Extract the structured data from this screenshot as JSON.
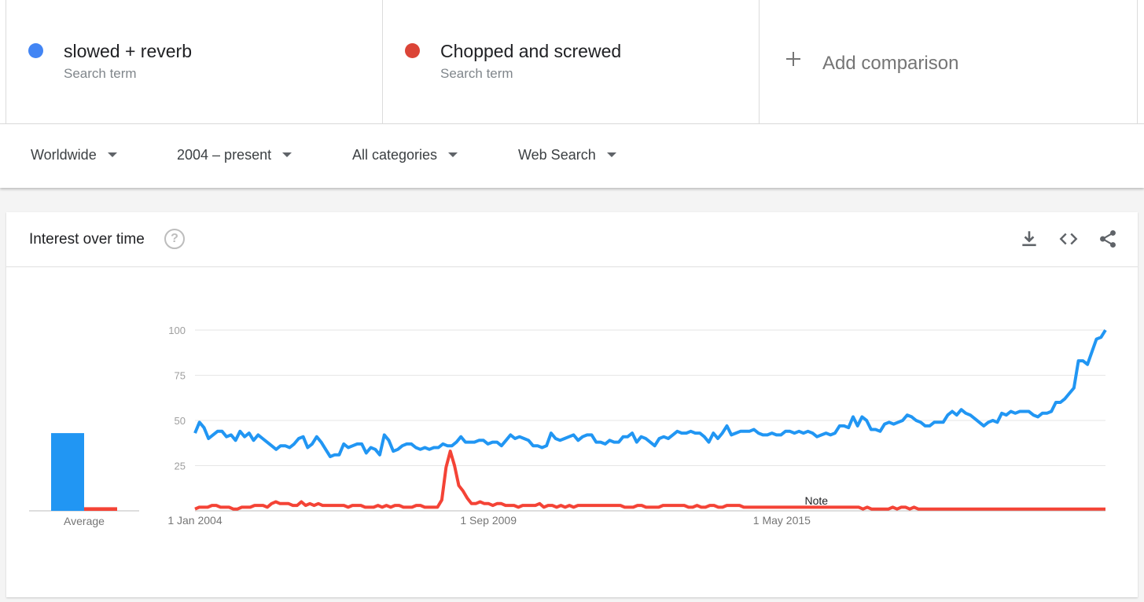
{
  "terms": [
    {
      "name": "slowed + reverb",
      "type": "Search term",
      "color": "#4285f4"
    },
    {
      "name": "Chopped and screwed",
      "type": "Search term",
      "color": "#db4437"
    }
  ],
  "add_comparison": {
    "label": "Add comparison",
    "icon": "plus-icon"
  },
  "filters": [
    {
      "label": "Worldwide"
    },
    {
      "label": "2004 – present"
    },
    {
      "label": "All categories"
    },
    {
      "label": "Web Search"
    }
  ],
  "card": {
    "title": "Interest over time",
    "icons": [
      "help-icon",
      "download-icon",
      "embed-icon",
      "share-icon"
    ]
  },
  "chart_data": {
    "type": "line",
    "title": "",
    "xlabel": "",
    "ylabel": "",
    "ylim": [
      0,
      100
    ],
    "yticks": [
      25,
      50,
      75,
      100
    ],
    "x_start": "2004-01",
    "x_end": "2021-08",
    "x_tick_labels": [
      {
        "date": "2004-01",
        "label": "1 Jan 2004"
      },
      {
        "date": "2009-09",
        "label": "1 Sep 2009"
      },
      {
        "date": "2015-05",
        "label": "1 May 2015"
      }
    ],
    "note": {
      "date": "2016-01",
      "label": "Note"
    },
    "average_label": "Average",
    "averages": [
      43,
      2
    ],
    "grid": true,
    "series": [
      {
        "color": "#2196f3",
        "values": [
          43,
          49,
          46,
          40,
          42,
          44,
          44,
          41,
          42,
          39,
          44,
          41,
          43,
          39,
          42,
          40,
          38,
          36,
          34,
          36,
          36,
          35,
          37,
          40,
          41,
          35,
          37,
          41,
          38,
          34,
          30,
          31,
          31,
          37,
          35,
          36,
          37,
          37,
          32,
          35,
          34,
          31,
          42,
          39,
          33,
          34,
          36,
          37,
          37,
          35,
          34,
          35,
          34,
          35,
          35,
          37,
          36,
          36,
          38,
          41,
          38,
          38,
          38,
          39,
          39,
          37,
          38,
          38,
          36,
          39,
          42,
          40,
          41,
          40,
          39,
          36,
          36,
          35,
          36,
          43,
          40,
          39,
          40,
          41,
          42,
          39,
          41,
          42,
          42,
          38,
          38,
          37,
          39,
          38,
          38,
          41,
          41,
          43,
          38,
          41,
          40,
          38,
          36,
          40,
          41,
          40,
          42,
          44,
          43,
          43,
          44,
          43,
          43,
          41,
          38,
          43,
          40,
          43,
          47,
          42,
          43,
          44,
          44,
          44,
          45,
          43,
          42,
          42,
          43,
          42,
          42,
          44,
          44,
          43,
          44,
          43,
          44,
          43,
          41,
          42,
          43,
          42,
          43,
          47,
          47,
          46,
          52,
          47,
          52,
          50,
          45,
          45,
          44,
          48,
          49,
          48,
          49,
          50,
          53,
          52,
          50,
          49,
          47,
          47,
          49,
          49,
          49,
          53,
          55,
          53,
          56,
          54,
          53,
          51,
          49,
          47,
          49,
          50,
          49,
          54,
          53,
          55,
          54,
          55,
          55,
          55,
          53,
          52,
          54,
          54,
          55,
          60,
          60,
          62,
          65,
          68,
          83,
          83,
          81,
          88,
          95,
          96,
          100
        ]
      },
      {
        "color": "#f44336",
        "values": [
          1,
          2,
          2,
          2,
          3,
          3,
          2,
          2,
          2,
          1,
          1,
          2,
          2,
          2,
          3,
          3,
          3,
          2,
          4,
          5,
          4,
          4,
          4,
          3,
          3,
          5,
          3,
          4,
          3,
          4,
          3,
          3,
          3,
          3,
          3,
          3,
          2,
          3,
          3,
          3,
          2,
          2,
          2,
          3,
          2,
          3,
          2,
          3,
          3,
          2,
          2,
          2,
          3,
          3,
          2,
          2,
          2,
          2,
          6,
          24,
          33,
          25,
          14,
          11,
          7,
          4,
          4,
          5,
          4,
          4,
          3,
          4,
          4,
          3,
          3,
          3,
          2,
          3,
          3,
          3,
          3,
          4,
          2,
          3,
          3,
          2,
          3,
          2,
          3,
          2,
          3,
          3,
          3,
          3,
          3,
          3,
          3,
          3,
          3,
          3,
          3,
          2,
          2,
          2,
          3,
          3,
          2,
          2,
          2,
          2,
          3,
          3,
          3,
          3,
          3,
          3,
          2,
          2,
          3,
          2,
          2,
          3,
          3,
          2,
          2,
          3,
          3,
          3,
          3,
          2,
          2,
          2,
          2,
          2,
          2,
          2,
          2,
          2,
          2,
          2,
          2,
          2,
          2,
          2,
          2,
          2,
          2,
          2,
          2,
          2,
          2,
          2,
          2,
          2,
          2,
          2,
          2,
          1,
          2,
          1,
          1,
          1,
          1,
          1,
          2,
          1,
          2,
          2,
          1,
          2,
          1,
          1,
          1,
          1,
          1,
          1,
          1,
          1,
          1,
          1,
          1,
          1,
          1,
          1,
          1,
          1,
          1,
          1,
          1,
          1,
          1,
          1,
          1,
          1,
          1,
          1,
          1,
          1,
          1,
          1,
          1,
          1,
          1,
          1,
          1,
          1,
          1,
          1,
          1,
          1,
          1,
          1,
          1,
          1,
          1
        ]
      }
    ]
  }
}
